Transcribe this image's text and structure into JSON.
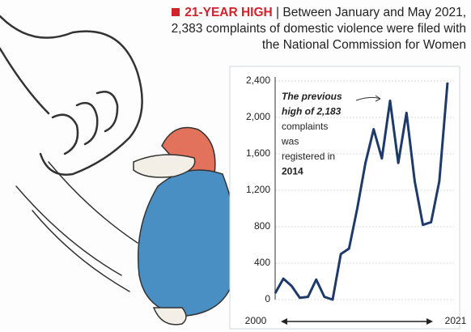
{
  "chart_data": {
    "type": "line",
    "headline": "21-YEAR HIGH",
    "title": "| Between January and May 2021, 2,383 complaints of domestic violence were filed with the National Commission for Women",
    "annotation": [
      "The previous",
      "high of 2,183",
      "complaints",
      "was",
      "registered in",
      "2014"
    ],
    "x": [
      2000,
      2001,
      2002,
      2003,
      2004,
      2005,
      2006,
      2007,
      2008,
      2009,
      2010,
      2011,
      2012,
      2013,
      2014,
      2015,
      2016,
      2017,
      2018,
      2019,
      2020,
      2021
    ],
    "series": [
      {
        "name": "Complaints",
        "color": "#1d3a6b",
        "values": [
          70,
          230,
          150,
          20,
          30,
          220,
          30,
          0,
          500,
          560,
          1000,
          1500,
          1870,
          1550,
          2183,
          1500,
          2050,
          1300,
          820,
          850,
          1300,
          2383
        ]
      }
    ],
    "xlim": [
      2000,
      2021
    ],
    "xticks": [
      2000,
      2021
    ],
    "ylim": [
      0,
      2400
    ],
    "yticks": [
      0,
      400,
      800,
      {
        "value": 1200,
        "label": "1,200"
      },
      {
        "value": 1600,
        "label": "1,600"
      },
      {
        "value": 2000,
        "label": "2,000"
      },
      {
        "value": 2400,
        "label": "2,400"
      }
    ],
    "grid": true
  }
}
